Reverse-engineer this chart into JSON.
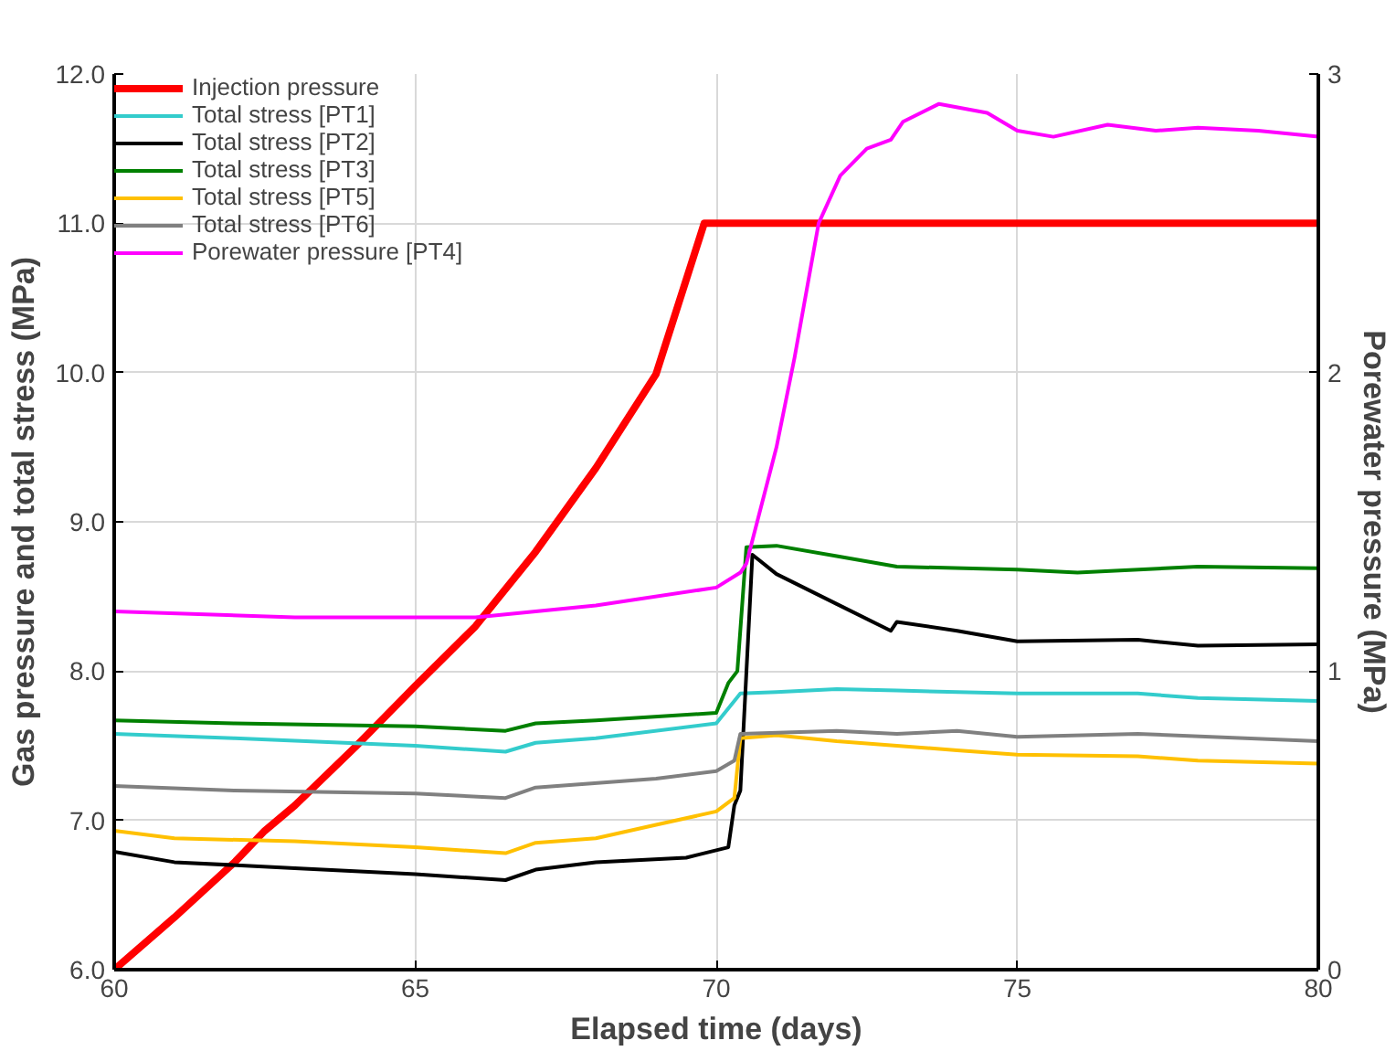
{
  "chart_data": {
    "type": "line",
    "xlabel": "Elapsed time (days)",
    "ylabel": "Gas pressure and total stress (MPa)",
    "y2label": "Porewater pressure (MPa)",
    "xlim": [
      60,
      80
    ],
    "xticks": [
      60,
      65,
      70,
      75,
      80
    ],
    "ylim": [
      6,
      12
    ],
    "yticks": [
      {
        "value": 6,
        "label": "6.0"
      },
      {
        "value": 7,
        "label": "7.0"
      },
      {
        "value": 8,
        "label": "8.0"
      },
      {
        "value": 9,
        "label": "9.0"
      },
      {
        "value": 10,
        "label": "10.0"
      },
      {
        "value": 11,
        "label": "11.0"
      },
      {
        "value": 12,
        "label": "12.0"
      }
    ],
    "y2lim": [
      0,
      3
    ],
    "y2ticks": [
      0,
      1,
      2,
      3
    ],
    "grid": true,
    "legend": "top left",
    "marker": "none",
    "series": [
      {
        "name": "Injection pressure",
        "color": "#ff0000",
        "x": [
          60,
          61,
          62,
          62.5,
          63,
          64,
          65,
          66,
          67,
          68,
          69,
          69.8,
          80
        ],
        "values": [
          6.0,
          6.35,
          6.72,
          6.93,
          7.1,
          7.49,
          7.9,
          8.3,
          8.8,
          9.36,
          9.99,
          11.0,
          11.0
        ]
      },
      {
        "name": "Total stress [PT1]",
        "color": "#33cccc",
        "x": [
          60,
          62,
          65,
          66.5,
          67,
          68,
          70,
          70.4,
          71,
          72,
          73,
          75,
          77,
          78,
          80
        ],
        "values": [
          7.58,
          7.55,
          7.5,
          7.46,
          7.52,
          7.55,
          7.65,
          7.85,
          7.86,
          7.88,
          7.87,
          7.85,
          7.85,
          7.82,
          7.8
        ]
      },
      {
        "name": "Total stress [PT2]",
        "color": "#000000",
        "x": [
          60,
          61,
          63,
          65,
          66.5,
          67,
          68,
          69.5,
          70.2,
          70.3,
          70.4,
          70.6,
          71,
          72,
          72.9,
          73,
          74,
          75,
          77,
          78,
          80
        ],
        "values": [
          6.79,
          6.72,
          6.68,
          6.64,
          6.6,
          6.67,
          6.72,
          6.75,
          6.82,
          7.1,
          7.2,
          8.78,
          8.65,
          8.45,
          8.27,
          8.33,
          8.27,
          8.2,
          8.21,
          8.17,
          8.18
        ]
      },
      {
        "name": "Total stress [PT3]",
        "color": "#008000",
        "x": [
          60,
          62,
          65,
          66.5,
          67,
          68,
          70,
          70.2,
          70.35,
          70.5,
          71,
          72,
          73,
          75,
          76,
          78,
          80
        ],
        "values": [
          7.67,
          7.65,
          7.63,
          7.6,
          7.65,
          7.67,
          7.72,
          7.92,
          8.0,
          8.83,
          8.84,
          8.77,
          8.7,
          8.68,
          8.66,
          8.7,
          8.69
        ]
      },
      {
        "name": "Total stress [PT5]",
        "color": "#ffc000",
        "x": [
          60,
          61,
          63,
          65,
          66.5,
          67,
          68,
          69,
          70,
          70.3,
          70.4,
          71,
          72,
          73,
          74,
          75,
          77,
          78,
          80
        ],
        "values": [
          6.93,
          6.88,
          6.86,
          6.82,
          6.78,
          6.85,
          6.88,
          6.97,
          7.06,
          7.15,
          7.55,
          7.57,
          7.53,
          7.5,
          7.47,
          7.44,
          7.43,
          7.4,
          7.38
        ]
      },
      {
        "name": "Total stress [PT6]",
        "color": "#808080",
        "x": [
          60,
          62,
          65,
          66.5,
          67,
          69,
          70,
          70.3,
          70.4,
          72,
          73,
          74,
          75,
          77,
          80
        ],
        "values": [
          7.23,
          7.2,
          7.18,
          7.15,
          7.22,
          7.28,
          7.33,
          7.4,
          7.58,
          7.6,
          7.58,
          7.6,
          7.56,
          7.58,
          7.53
        ]
      },
      {
        "name": "Porewater pressure [PT4]",
        "color": "#ff00ff",
        "axis": "y2",
        "x": [
          60,
          63,
          66,
          68,
          70,
          70.4,
          70.5,
          71,
          71.3,
          71.7,
          72.06,
          72.5,
          72.9,
          73.1,
          73.7,
          74.5,
          75,
          75.6,
          76.5,
          77.3,
          78,
          79,
          80
        ],
        "values": [
          1.2,
          1.18,
          1.18,
          1.22,
          1.28,
          1.33,
          1.36,
          1.75,
          2.05,
          2.5,
          2.66,
          2.75,
          2.78,
          2.84,
          2.9,
          2.87,
          2.81,
          2.79,
          2.83,
          2.81,
          2.82,
          2.81,
          2.79
        ]
      }
    ]
  }
}
